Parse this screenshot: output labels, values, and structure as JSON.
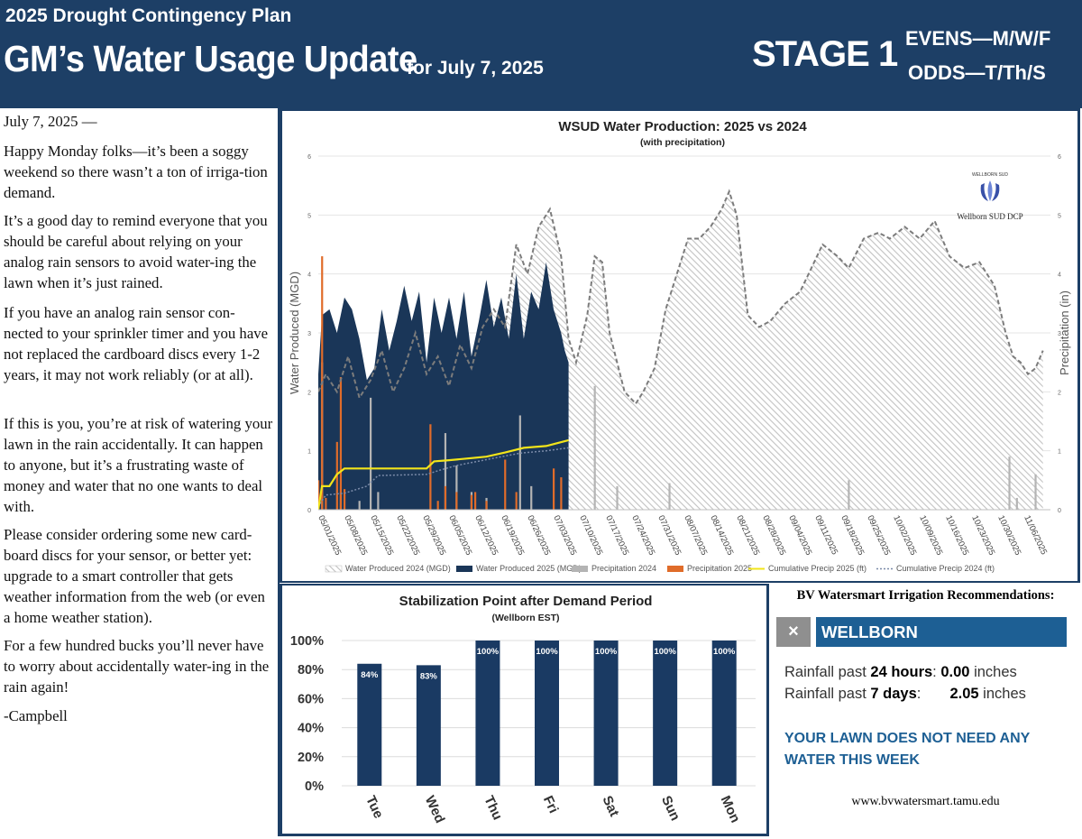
{
  "header": {
    "kicker": "2025 Drought Contingency Plan",
    "title": "GM’s Water Usage Update",
    "date_label": "for July 7, 2025",
    "stage": "STAGE 1",
    "evens": "EVENS—M/W/F",
    "odds": "ODDS—T/Th/S",
    "bg_color": "#1d3f66"
  },
  "letter": {
    "paragraphs": [
      "July 7, 2025 —",
      "Happy Monday folks—it’s been a soggy weekend so there wasn’t a ton of irriga-tion demand.",
      "It’s a good day to remind everyone that you should be careful about relying on your analog rain sensors to avoid water-ing the lawn when it’s just rained.",
      "If you have an analog rain sensor con-nected to your sprinkler timer and you have not replaced the cardboard discs every 1-2 years, it may not work reliably (or at all).",
      "If this is you, you’re at risk of watering your lawn in the rain accidentally.  It can happen to anyone, but it’s a frustrating waste of money and water that no one wants to deal with.",
      "Please consider ordering some new card-board discs for your sensor, or better yet: upgrade to a smart controller that gets weather information from the web (or even a home weather station).",
      "For a few hundred bucks you’ll never have to worry about accidentally water-ing in the rain again!",
      "-Campbell"
    ]
  },
  "logo": {
    "ring_text": "WELLBORN SUD",
    "caption": "Wellborn SUD DCP"
  },
  "bv": {
    "title": "BV Watersmart Irrigation Recommendations:",
    "close": "×",
    "location": "WELLBORN",
    "rain_24_label": "Rainfall past ",
    "rain_24_period": "24 hours",
    "rain_24_value": "0.00",
    "rain_7_label": "Rainfall past ",
    "rain_7_period": "7 days",
    "rain_7_value": "2.05",
    "unit": "inches",
    "message": "YOUR LAWN DOES NOT NEED ANY WATER THIS WEEK",
    "url": "www.bvwatersmart.tamu.edu"
  },
  "chart_data": [
    {
      "type": "area",
      "title": "WSUD Water Production: 2025 vs 2024",
      "subtitle": "(with precipitation)",
      "ylabel": "Water Produced (MGD)",
      "y2label": "Precipitation (in)",
      "ylim": [
        0,
        6
      ],
      "y2lim": [
        0,
        6
      ],
      "yticks": [
        0,
        1,
        2,
        3,
        4,
        5,
        6
      ],
      "xlim": [
        "2025-05-01",
        "2025-11-13"
      ],
      "x_tick_labels": [
        "05/01/2025",
        "05/08/2025",
        "05/15/2025",
        "05/22/2025",
        "05/29/2025",
        "06/05/2025",
        "06/12/2025",
        "06/19/2025",
        "06/26/2025",
        "07/03/2025",
        "07/10/2025",
        "07/17/2025",
        "07/24/2025",
        "07/31/2025",
        "08/07/2025",
        "08/14/2025",
        "08/21/2025",
        "08/28/2025",
        "09/04/2025",
        "09/11/2025",
        "09/18/2025",
        "09/25/2025",
        "10/02/2025",
        "10/09/2025",
        "10/16/2025",
        "10/23/2025",
        "10/30/2025",
        "11/06/2025"
      ],
      "grid": true,
      "legend_position": "bottom",
      "series": [
        {
          "name": "Water Produced 2024 (MGD)",
          "kind": "area-hatch",
          "color": "#8c8c8c",
          "points": [
            [
              "2025-05-01",
              2.0
            ],
            [
              "2025-05-03",
              2.3
            ],
            [
              "2025-05-06",
              2.0
            ],
            [
              "2025-05-09",
              2.6
            ],
            [
              "2025-05-12",
              1.9
            ],
            [
              "2025-05-15",
              2.2
            ],
            [
              "2025-05-18",
              2.7
            ],
            [
              "2025-05-21",
              2.0
            ],
            [
              "2025-05-24",
              2.4
            ],
            [
              "2025-05-27",
              3.0
            ],
            [
              "2025-05-30",
              2.3
            ],
            [
              "2025-06-02",
              2.6
            ],
            [
              "2025-06-05",
              2.1
            ],
            [
              "2025-06-08",
              2.8
            ],
            [
              "2025-06-11",
              2.4
            ],
            [
              "2025-06-14",
              3.1
            ],
            [
              "2025-06-17",
              3.4
            ],
            [
              "2025-06-20",
              3.1
            ],
            [
              "2025-06-23",
              4.5
            ],
            [
              "2025-06-26",
              4.0
            ],
            [
              "2025-06-29",
              4.8
            ],
            [
              "2025-07-02",
              5.1
            ],
            [
              "2025-07-05",
              4.3
            ],
            [
              "2025-07-07",
              2.9
            ],
            [
              "2025-07-09",
              2.5
            ],
            [
              "2025-07-12",
              3.3
            ],
            [
              "2025-07-14",
              4.3
            ],
            [
              "2025-07-16",
              4.2
            ],
            [
              "2025-07-18",
              3.0
            ],
            [
              "2025-07-20",
              2.5
            ],
            [
              "2025-07-22",
              2.0
            ],
            [
              "2025-07-25",
              1.8
            ],
            [
              "2025-07-27",
              2.0
            ],
            [
              "2025-07-30",
              2.4
            ],
            [
              "2025-08-02",
              3.4
            ],
            [
              "2025-08-05",
              4.0
            ],
            [
              "2025-08-08",
              4.6
            ],
            [
              "2025-08-11",
              4.6
            ],
            [
              "2025-08-14",
              4.8
            ],
            [
              "2025-08-17",
              5.1
            ],
            [
              "2025-08-19",
              5.4
            ],
            [
              "2025-08-21",
              5.0
            ],
            [
              "2025-08-24",
              3.3
            ],
            [
              "2025-08-27",
              3.1
            ],
            [
              "2025-08-30",
              3.2
            ],
            [
              "2025-09-03",
              3.5
            ],
            [
              "2025-09-07",
              3.7
            ],
            [
              "2025-09-10",
              4.1
            ],
            [
              "2025-09-13",
              4.5
            ],
            [
              "2025-09-17",
              4.3
            ],
            [
              "2025-09-20",
              4.1
            ],
            [
              "2025-09-24",
              4.6
            ],
            [
              "2025-09-28",
              4.7
            ],
            [
              "2025-10-01",
              4.6
            ],
            [
              "2025-10-05",
              4.8
            ],
            [
              "2025-10-09",
              4.6
            ],
            [
              "2025-10-13",
              4.9
            ],
            [
              "2025-10-17",
              4.3
            ],
            [
              "2025-10-21",
              4.1
            ],
            [
              "2025-10-25",
              4.2
            ],
            [
              "2025-10-29",
              3.8
            ],
            [
              "2025-11-01",
              3.0
            ],
            [
              "2025-11-03",
              2.6
            ],
            [
              "2025-11-05",
              2.5
            ],
            [
              "2025-11-07",
              2.3
            ],
            [
              "2025-11-09",
              2.4
            ],
            [
              "2025-11-11",
              2.7
            ]
          ]
        },
        {
          "name": "Water Produced 2025 (MGD)",
          "kind": "area",
          "color": "#1a3658",
          "points": [
            [
              "2025-05-01",
              2.3
            ],
            [
              "2025-05-02",
              3.3
            ],
            [
              "2025-05-04",
              3.4
            ],
            [
              "2025-05-06",
              3.0
            ],
            [
              "2025-05-08",
              3.6
            ],
            [
              "2025-05-10",
              3.4
            ],
            [
              "2025-05-12",
              2.9
            ],
            [
              "2025-05-14",
              2.2
            ],
            [
              "2025-05-16",
              2.4
            ],
            [
              "2025-05-18",
              3.4
            ],
            [
              "2025-05-20",
              2.7
            ],
            [
              "2025-05-22",
              3.2
            ],
            [
              "2025-05-24",
              3.8
            ],
            [
              "2025-05-26",
              3.2
            ],
            [
              "2025-05-28",
              3.7
            ],
            [
              "2025-05-30",
              2.5
            ],
            [
              "2025-06-01",
              3.6
            ],
            [
              "2025-06-03",
              3.0
            ],
            [
              "2025-06-05",
              3.6
            ],
            [
              "2025-06-07",
              2.9
            ],
            [
              "2025-06-09",
              3.7
            ],
            [
              "2025-06-11",
              2.6
            ],
            [
              "2025-06-13",
              3.2
            ],
            [
              "2025-06-15",
              3.9
            ],
            [
              "2025-06-17",
              3.1
            ],
            [
              "2025-06-19",
              3.6
            ],
            [
              "2025-06-21",
              2.9
            ],
            [
              "2025-06-23",
              4.0
            ],
            [
              "2025-06-25",
              2.9
            ],
            [
              "2025-06-27",
              3.7
            ],
            [
              "2025-06-29",
              3.4
            ],
            [
              "2025-07-01",
              4.2
            ],
            [
              "2025-07-03",
              3.4
            ],
            [
              "2025-07-05",
              3.0
            ],
            [
              "2025-07-06",
              2.7
            ],
            [
              "2025-07-07",
              2.5
            ]
          ]
        },
        {
          "name": "Precipitation 2024",
          "kind": "bar",
          "color": "#b4b4b4",
          "points": [
            [
              "2025-05-02",
              2.5
            ],
            [
              "2025-05-07",
              0.3
            ],
            [
              "2025-05-12",
              0.15
            ],
            [
              "2025-05-15",
              1.9
            ],
            [
              "2025-05-17",
              0.3
            ],
            [
              "2025-06-04",
              1.3
            ],
            [
              "2025-06-07",
              0.75
            ],
            [
              "2025-06-11",
              0.3
            ],
            [
              "2025-06-15",
              0.2
            ],
            [
              "2025-06-24",
              1.6
            ],
            [
              "2025-06-27",
              0.4
            ],
            [
              "2025-07-14",
              2.1
            ],
            [
              "2025-07-20",
              0.4
            ],
            [
              "2025-08-03",
              0.45
            ],
            [
              "2025-09-20",
              0.5
            ],
            [
              "2025-11-02",
              0.9
            ],
            [
              "2025-11-04",
              0.2
            ],
            [
              "2025-11-09",
              0.6
            ]
          ]
        },
        {
          "name": "Precipitation 2025",
          "kind": "bar",
          "color": "#e06c2a",
          "points": [
            [
              "2025-05-01",
              0.5
            ],
            [
              "2025-05-02",
              4.3
            ],
            [
              "2025-05-03",
              0.2
            ],
            [
              "2025-05-06",
              1.15
            ],
            [
              "2025-05-07",
              2.25
            ],
            [
              "2025-05-08",
              0.35
            ],
            [
              "2025-05-31",
              1.45
            ],
            [
              "2025-06-02",
              0.15
            ],
            [
              "2025-06-04",
              0.4
            ],
            [
              "2025-06-07",
              0.3
            ],
            [
              "2025-06-11",
              0.25
            ],
            [
              "2025-06-12",
              0.3
            ],
            [
              "2025-06-15",
              0.15
            ],
            [
              "2025-06-20",
              0.85
            ],
            [
              "2025-06-23",
              0.3
            ],
            [
              "2025-07-03",
              0.7
            ],
            [
              "2025-07-05",
              0.55
            ]
          ]
        },
        {
          "name": "Cumulative Precip 2025 (ft)",
          "kind": "line",
          "color": "#f2e41a",
          "points": [
            [
              "2025-05-01",
              0.0
            ],
            [
              "2025-05-02",
              0.4
            ],
            [
              "2025-05-04",
              0.4
            ],
            [
              "2025-05-06",
              0.6
            ],
            [
              "2025-05-08",
              0.7
            ],
            [
              "2025-05-30",
              0.7
            ],
            [
              "2025-06-01",
              0.82
            ],
            [
              "2025-06-05",
              0.84
            ],
            [
              "2025-06-10",
              0.87
            ],
            [
              "2025-06-15",
              0.9
            ],
            [
              "2025-06-20",
              0.97
            ],
            [
              "2025-06-25",
              1.05
            ],
            [
              "2025-07-01",
              1.08
            ],
            [
              "2025-07-04",
              1.13
            ],
            [
              "2025-07-07",
              1.18
            ]
          ]
        },
        {
          "name": "Cumulative Precip 2024 (ft)",
          "kind": "line-dotted",
          "color": "#7a8aa8",
          "points": [
            [
              "2025-05-01",
              0.05
            ],
            [
              "2025-05-03",
              0.25
            ],
            [
              "2025-05-08",
              0.28
            ],
            [
              "2025-05-14",
              0.4
            ],
            [
              "2025-05-17",
              0.58
            ],
            [
              "2025-05-30",
              0.6
            ],
            [
              "2025-06-03",
              0.68
            ],
            [
              "2025-06-07",
              0.75
            ],
            [
              "2025-06-15",
              0.85
            ],
            [
              "2025-06-24",
              0.96
            ],
            [
              "2025-07-01",
              1.0
            ],
            [
              "2025-07-07",
              1.05
            ]
          ]
        }
      ]
    },
    {
      "type": "bar",
      "title": "Stabilization Point after Demand Period",
      "subtitle": "(Wellborn EST)",
      "categories": [
        "Tue",
        "Wed",
        "Thu",
        "Fri",
        "Sat",
        "Sun",
        "Mon"
      ],
      "values": [
        84,
        83,
        100,
        100,
        100,
        100,
        100
      ],
      "data_labels": [
        "84%",
        "83%",
        "100%",
        "100%",
        "100%",
        "100%",
        "100%"
      ],
      "ylim": [
        0,
        100
      ],
      "yticks": [
        0,
        20,
        40,
        60,
        80,
        100
      ],
      "ytick_labels": [
        "0%",
        "20%",
        "40%",
        "60%",
        "80%",
        "100%"
      ],
      "bar_color": "#1a3a63",
      "grid": true
    }
  ]
}
